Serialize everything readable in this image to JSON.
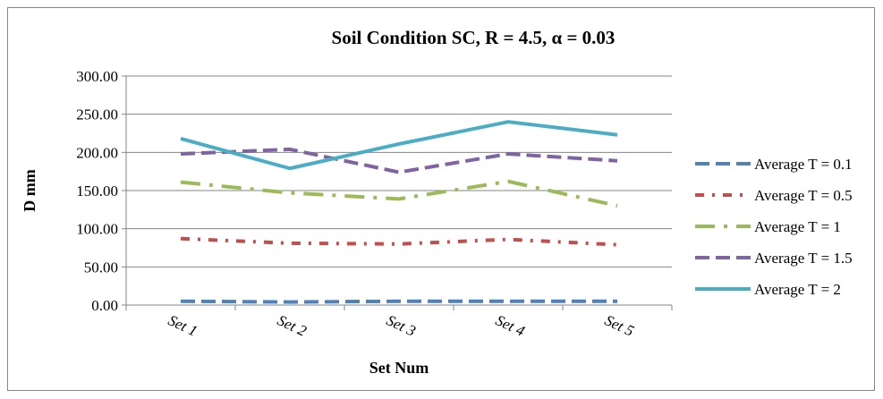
{
  "chart_data": {
    "type": "line",
    "title": "Soil Condition SC, R = 4.5, α = 0.03",
    "xlabel": "Set Num",
    "ylabel": "D mm",
    "categories": [
      "Set 1",
      "Set 2",
      "Set 3",
      "Set 4",
      "Set 5"
    ],
    "ylim": [
      0,
      300
    ],
    "yticks": [
      "0.00",
      "50.00",
      "100.00",
      "150.00",
      "200.00",
      "250.00",
      "300.00"
    ],
    "grid": true,
    "legend_position": "right",
    "series": [
      {
        "name": "Average T = 0.1",
        "values": [
          5,
          4,
          5,
          5,
          5
        ],
        "color": "#4F81BD",
        "dash": "long-dash"
      },
      {
        "name": "Average T = 0.5",
        "values": [
          87,
          81,
          80,
          86,
          79
        ],
        "color": "#C0504D",
        "dash": "dash-dot"
      },
      {
        "name": "Average T = 1",
        "values": [
          161,
          147,
          139,
          162,
          130
        ],
        "color": "#9BBB59",
        "dash": "long-dash-dot"
      },
      {
        "name": "Average T = 1.5",
        "values": [
          198,
          204,
          174,
          198,
          189
        ],
        "color": "#8064A2",
        "dash": "dash"
      },
      {
        "name": "Average T = 2",
        "values": [
          218,
          179,
          211,
          240,
          223
        ],
        "color": "#4BACC6",
        "dash": "solid"
      }
    ]
  }
}
